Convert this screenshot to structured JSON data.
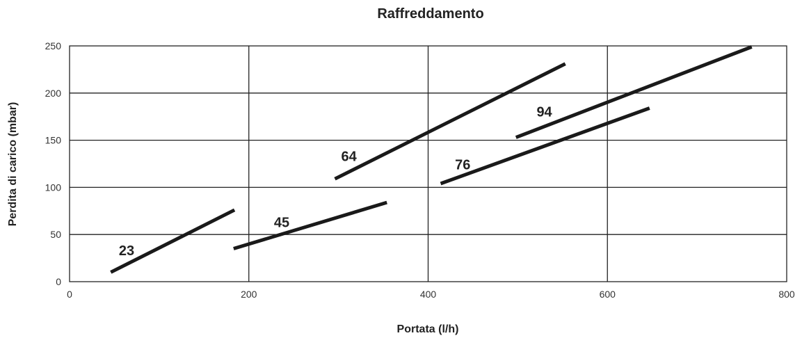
{
  "chart_data": {
    "type": "line",
    "title": "Raffreddamento",
    "xlabel": "Portata (l/h)",
    "ylabel": "Perdita di carico (mbar)",
    "xlim": [
      0,
      800
    ],
    "ylim": [
      0,
      250
    ],
    "x_ticks": [
      0,
      200,
      400,
      600,
      800
    ],
    "y_ticks": [
      0,
      50,
      100,
      150,
      200,
      250
    ],
    "grid": true,
    "series": [
      {
        "name": "23",
        "x": [
          46,
          184
        ],
        "y": [
          10,
          76
        ]
      },
      {
        "name": "45",
        "x": [
          183,
          354
        ],
        "y": [
          35,
          84
        ]
      },
      {
        "name": "64",
        "x": [
          296,
          553
        ],
        "y": [
          109,
          231
        ]
      },
      {
        "name": "76",
        "x": [
          414,
          647
        ],
        "y": [
          104,
          184
        ]
      },
      {
        "name": "94",
        "x": [
          498,
          761
        ],
        "y": [
          153,
          249
        ]
      }
    ],
    "label_anchors": [
      {
        "x": 55,
        "y": 28
      },
      {
        "x": 228,
        "y": 58
      },
      {
        "x": 303,
        "y": 128
      },
      {
        "x": 430,
        "y": 119
      },
      {
        "x": 521,
        "y": 175
      }
    ]
  }
}
